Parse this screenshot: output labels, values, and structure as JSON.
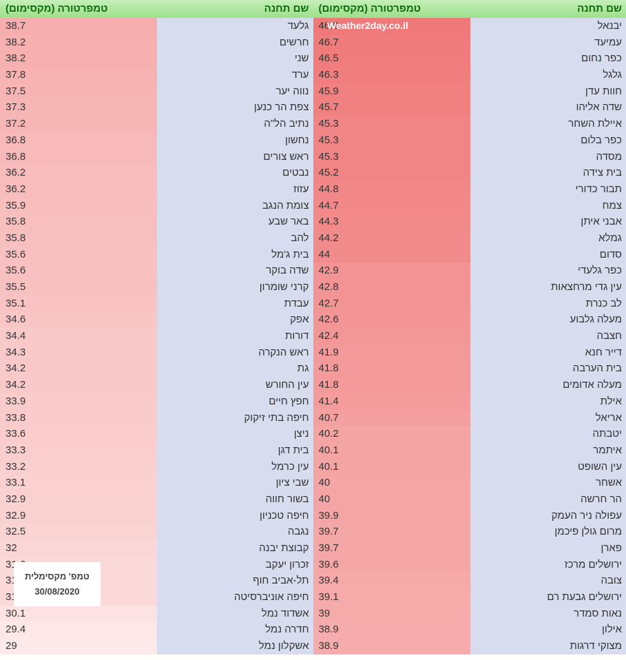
{
  "headers": {
    "station": "שם תחנה",
    "tempmax": "טמפרטורה (מקסימום)"
  },
  "watermark": "Weather2day.co.il",
  "datebox": {
    "line1": "טמפ' מקסימלית",
    "line2": "30/08/2020"
  },
  "colors": {
    "name_bg": "#d7dcef",
    "temp_scale": {
      "max_temp": 46.9,
      "min_temp": 29.0,
      "max_color": "#f07a7a",
      "min_color": "#fde9e9"
    }
  },
  "left": [
    {
      "name": "יבנאל",
      "temp": 46.9
    },
    {
      "name": "עמיעד",
      "temp": 46.7
    },
    {
      "name": "כפר נחום",
      "temp": 46.5
    },
    {
      "name": "גלגל",
      "temp": 46.3
    },
    {
      "name": "חוות עדן",
      "temp": 45.9
    },
    {
      "name": "שדה אליהו",
      "temp": 45.7
    },
    {
      "name": "איילת השחר",
      "temp": 45.3
    },
    {
      "name": "כפר בלום",
      "temp": 45.3
    },
    {
      "name": "מסדה",
      "temp": 45.3
    },
    {
      "name": "בית צידה",
      "temp": 45.2
    },
    {
      "name": "תבור כדורי",
      "temp": 44.8
    },
    {
      "name": "צמח",
      "temp": 44.7
    },
    {
      "name": "אבני איתן",
      "temp": 44.3
    },
    {
      "name": "גמלא",
      "temp": 44.2
    },
    {
      "name": "סדום",
      "temp": 44
    },
    {
      "name": "כפר גלעדי",
      "temp": 42.9
    },
    {
      "name": "עין גדי מרחצאות",
      "temp": 42.8
    },
    {
      "name": "לב כנרת",
      "temp": 42.7
    },
    {
      "name": "מעלה גלבוע",
      "temp": 42.6
    },
    {
      "name": "חצבה",
      "temp": 42.4
    },
    {
      "name": "דייר חנא",
      "temp": 41.9
    },
    {
      "name": "בית הערבה",
      "temp": 41.8
    },
    {
      "name": "מעלה אדומים",
      "temp": 41.8
    },
    {
      "name": "אילת",
      "temp": 41.4
    },
    {
      "name": "אריאל",
      "temp": 40.7
    },
    {
      "name": "יטבתה",
      "temp": 40.2
    },
    {
      "name": "איתמר",
      "temp": 40.1
    },
    {
      "name": "עין השופט",
      "temp": 40.1
    },
    {
      "name": "אשחר",
      "temp": 40
    },
    {
      "name": "הר חרשה",
      "temp": 40
    },
    {
      "name": "עפולה ניר העמק",
      "temp": 39.9
    },
    {
      "name": "מרום גולן פיכמן",
      "temp": 39.7
    },
    {
      "name": "פארן",
      "temp": 39.7
    },
    {
      "name": "ירושלים מרכז",
      "temp": 39.6
    },
    {
      "name": "צובה",
      "temp": 39.4
    },
    {
      "name": "ירושלים גבעת רם",
      "temp": 39.1
    },
    {
      "name": "נאות סמדר",
      "temp": 39
    },
    {
      "name": "אילון",
      "temp": 38.9
    },
    {
      "name": "מצוקי דרגות",
      "temp": 38.9
    }
  ],
  "right": [
    {
      "name": "גלעד",
      "temp": 38.7
    },
    {
      "name": "חרשים",
      "temp": 38.2
    },
    {
      "name": "שני",
      "temp": 38.2
    },
    {
      "name": "ערד",
      "temp": 37.8
    },
    {
      "name": "נווה יער",
      "temp": 37.5
    },
    {
      "name": "צפת הר כנען",
      "temp": 37.3
    },
    {
      "name": "נתיב הל\"ה",
      "temp": 37.2
    },
    {
      "name": "נחשון",
      "temp": 36.8
    },
    {
      "name": "ראש צורים",
      "temp": 36.8
    },
    {
      "name": "נבטים",
      "temp": 36.2
    },
    {
      "name": "עזוז",
      "temp": 36.2
    },
    {
      "name": "צומת הנגב",
      "temp": 35.9
    },
    {
      "name": "באר שבע",
      "temp": 35.8
    },
    {
      "name": "להב",
      "temp": 35.8
    },
    {
      "name": "בית ג'מל",
      "temp": 35.6
    },
    {
      "name": "שדה בוקר",
      "temp": 35.6
    },
    {
      "name": "קרני שומרון",
      "temp": 35.5
    },
    {
      "name": "עבדת",
      "temp": 35.1
    },
    {
      "name": "אפק",
      "temp": 34.6
    },
    {
      "name": "דורות",
      "temp": 34.4
    },
    {
      "name": "ראש הנקרה",
      "temp": 34.3
    },
    {
      "name": "גת",
      "temp": 34.2
    },
    {
      "name": "עין החורש",
      "temp": 34.2
    },
    {
      "name": "חפץ חיים",
      "temp": 33.9
    },
    {
      "name": "חיפה בתי זיקוק",
      "temp": 33.8
    },
    {
      "name": "ניצן",
      "temp": 33.6
    },
    {
      "name": "בית דגן",
      "temp": 33.3
    },
    {
      "name": "עין כרמל",
      "temp": 33.2
    },
    {
      "name": "שבי ציון",
      "temp": 33.1
    },
    {
      "name": "בשור חווה",
      "temp": 32.9
    },
    {
      "name": "חיפה טכניון",
      "temp": 32.9
    },
    {
      "name": "נגבה",
      "temp": 32.5
    },
    {
      "name": "קבוצת יבנה",
      "temp": 32
    },
    {
      "name": "זכרון יעקב",
      "temp": 31.6
    },
    {
      "name": "תל-אביב חוף",
      "temp": 31.6
    },
    {
      "name": "חיפה אוניברסיטה",
      "temp": 31.5
    },
    {
      "name": "אשדוד נמל",
      "temp": 30.1
    },
    {
      "name": "חדרה נמל",
      "temp": 29.4
    },
    {
      "name": "אשקלון נמל",
      "temp": 29
    }
  ]
}
